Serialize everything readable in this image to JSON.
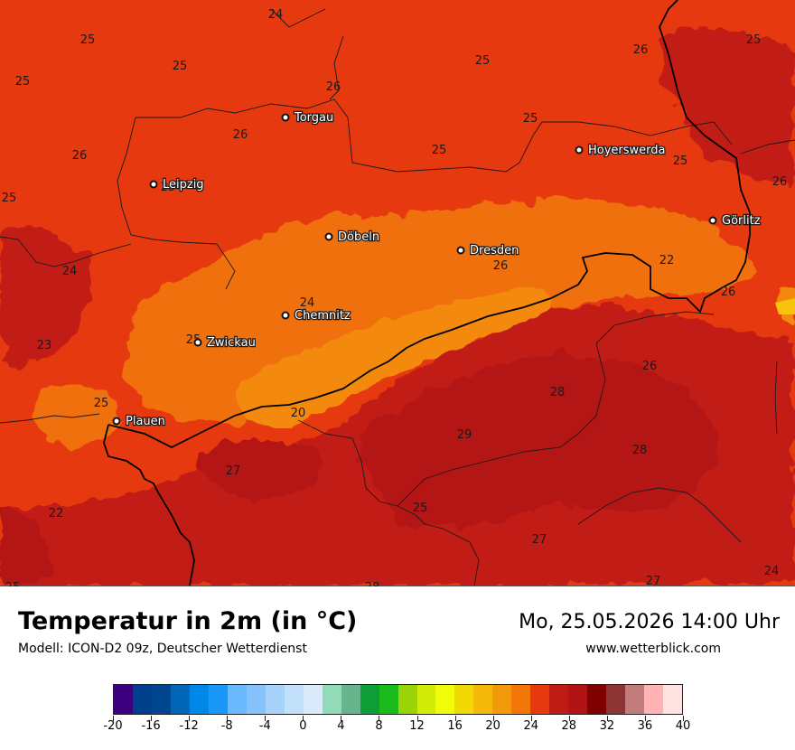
{
  "title": "Temperatur in 2m (in °C)",
  "model": "Modell: ICON-D2 09z, Deutscher Wetterdienst",
  "datetime": "Mo, 25.05.2026 14:00 Uhr",
  "website": "www.wetterblick.com",
  "colors": {
    "base": "#e6390f",
    "warm": "#f07010",
    "mid": "#f48a0f",
    "hot": "#c21c13",
    "hotter": "#b41513",
    "yellow": "#f6c40c"
  },
  "cities": [
    {
      "name": "Torgau"
    },
    {
      "name": "Leipzig"
    },
    {
      "name": "Hoyerswerda"
    },
    {
      "name": "Görlitz"
    },
    {
      "name": "Döbeln"
    },
    {
      "name": "Dresden"
    },
    {
      "name": "Chemnitz"
    },
    {
      "name": "Zwickau"
    },
    {
      "name": "Plauen"
    }
  ],
  "temperature_labels": [
    "24",
    "25",
    "25",
    "25",
    "26",
    "25",
    "26",
    "25",
    "25",
    "26",
    "26",
    "25",
    "25",
    "26",
    "25",
    "25",
    "26",
    "22",
    "24",
    "24",
    "26",
    "23",
    "25",
    "26",
    "25",
    "28",
    "20",
    "29",
    "28",
    "27",
    "22",
    "25",
    "27",
    "25",
    "28",
    "27",
    "24"
  ],
  "legend": {
    "colors": [
      "#3d007f",
      "#003f8c",
      "#00468e",
      "#0067b8",
      "#0088e8",
      "#1b97f7",
      "#6ab8fe",
      "#86c3fd",
      "#a7d2fa",
      "#c3e0fb",
      "#d9ebfb",
      "#92dab8",
      "#66b58c",
      "#0f9d37",
      "#1bbb1b",
      "#98d407",
      "#d1ec06",
      "#f1fd08",
      "#f2d804",
      "#f5b909",
      "#f39a0c",
      "#f27708",
      "#e6390f",
      "#be1b14",
      "#b21314",
      "#7f0000",
      "#8d3434",
      "#c17b7b",
      "#ffb3b3",
      "#ffe2e2"
    ],
    "ticks": [
      "-20",
      "-16",
      "-12",
      "-8",
      "-4",
      "0",
      "4",
      "8",
      "12",
      "16",
      "20",
      "24",
      "28",
      "32",
      "36",
      "40"
    ]
  }
}
